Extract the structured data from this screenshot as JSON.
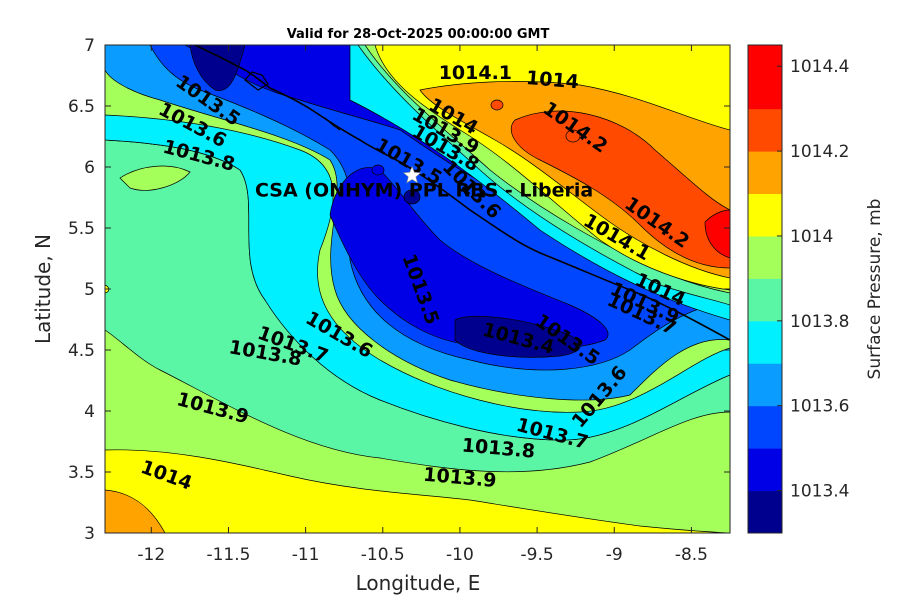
{
  "chart_data": {
    "type": "contour",
    "title": "Valid for 28-Oct-2025 00:00:00 GMT",
    "xlabel": "Longitude, E",
    "ylabel": "Latitude, N",
    "xlim": [
      -12.3,
      -8.25
    ],
    "ylim": [
      3,
      7
    ],
    "xticks": [
      -12,
      -11.5,
      -11,
      -10.5,
      -10,
      -9.5,
      -9,
      -8.5
    ],
    "yticks": [
      3,
      3.5,
      4,
      4.5,
      5,
      5.5,
      6,
      6.5,
      7
    ],
    "xtick_labels": [
      "-12",
      "-11.5",
      "-11",
      "-10.5",
      "-10",
      "-9.5",
      "-9",
      "-8.5"
    ],
    "ytick_labels": [
      "3",
      "3.5",
      "4",
      "4.5",
      "5",
      "5.5",
      "6",
      "6.5",
      "7"
    ],
    "colorbar": {
      "label": "Surface Pressure, mb",
      "range": [
        1013.3,
        1014.45
      ],
      "levels": [
        1013.3,
        1013.4,
        1013.5,
        1013.6,
        1013.7,
        1013.8,
        1013.9,
        1014.0,
        1014.1,
        1014.2,
        1014.3,
        1014.45
      ],
      "colors": [
        "#00008f",
        "#0000e6",
        "#0046ff",
        "#0a9cff",
        "#00f0ff",
        "#5af5a5",
        "#a5ff5a",
        "#ffff00",
        "#ffa300",
        "#ff4a00",
        "#ff0000",
        "#a80000"
      ],
      "tick_values": [
        1013.4,
        1013.6,
        1013.8,
        1014,
        1014.2,
        1014.4
      ],
      "tick_labels": [
        "1013.4",
        "1013.6",
        "1013.8",
        "1014",
        "1014.2",
        "1014.4"
      ]
    },
    "contour_labels": [
      {
        "text": "1014.1",
        "x": -9.9,
        "y": 6.78,
        "angle": 0
      },
      {
        "text": "1014",
        "x": -9.4,
        "y": 6.72,
        "angle": 5
      },
      {
        "text": "1014",
        "x": -10.04,
        "y": 6.42,
        "angle": 30
      },
      {
        "text": "1013.9",
        "x": -10.09,
        "y": 6.3,
        "angle": 30
      },
      {
        "text": "1013.8",
        "x": -10.09,
        "y": 6.16,
        "angle": 30
      },
      {
        "text": "1013.5",
        "x": -10.33,
        "y": 6.05,
        "angle": 30
      },
      {
        "text": "1013.6",
        "x": -9.92,
        "y": 5.82,
        "angle": 45
      },
      {
        "text": "1014.2",
        "x": -9.25,
        "y": 6.33,
        "angle": 35
      },
      {
        "text": "1014.2",
        "x": -8.72,
        "y": 5.55,
        "angle": 35
      },
      {
        "text": "1014.1",
        "x": -8.98,
        "y": 5.43,
        "angle": 30
      },
      {
        "text": "1014",
        "x": -8.7,
        "y": 5.0,
        "angle": 25
      },
      {
        "text": "1013.9",
        "x": -8.8,
        "y": 4.89,
        "angle": 25
      },
      {
        "text": "1013.7",
        "x": -8.82,
        "y": 4.8,
        "angle": 25
      },
      {
        "text": "1013.5",
        "x": -11.63,
        "y": 6.55,
        "angle": 35
      },
      {
        "text": "1013.6",
        "x": -11.73,
        "y": 6.35,
        "angle": 28
      },
      {
        "text": "1013.8",
        "x": -11.69,
        "y": 6.1,
        "angle": 15
      },
      {
        "text": "1013.5",
        "x": -10.25,
        "y": 5.0,
        "angle": 70
      },
      {
        "text": "1013.6",
        "x": -10.78,
        "y": 4.63,
        "angle": 30
      },
      {
        "text": "1013.7",
        "x": -11.08,
        "y": 4.55,
        "angle": 20
      },
      {
        "text": "1013.8",
        "x": -11.26,
        "y": 4.48,
        "angle": 10
      },
      {
        "text": "1013.4",
        "x": -9.62,
        "y": 4.6,
        "angle": 15
      },
      {
        "text": "1013.5",
        "x": -9.3,
        "y": 4.59,
        "angle": 35
      },
      {
        "text": "1013.6",
        "x": -9.1,
        "y": 4.12,
        "angle": -50
      },
      {
        "text": "1013.7",
        "x": -9.4,
        "y": 3.82,
        "angle": 15
      },
      {
        "text": "1013.8",
        "x": -9.75,
        "y": 3.7,
        "angle": 5
      },
      {
        "text": "1013.9",
        "x": -11.6,
        "y": 4.03,
        "angle": 15
      },
      {
        "text": "1013.9",
        "x": -10.0,
        "y": 3.46,
        "angle": 5
      },
      {
        "text": "1014",
        "x": -11.9,
        "y": 3.48,
        "angle": 20
      }
    ],
    "site": {
      "name": "CSA (ONHYM) PPL RBS  - Liberia",
      "lon": -10.31,
      "lat": 5.93,
      "marker": "white-star"
    }
  }
}
